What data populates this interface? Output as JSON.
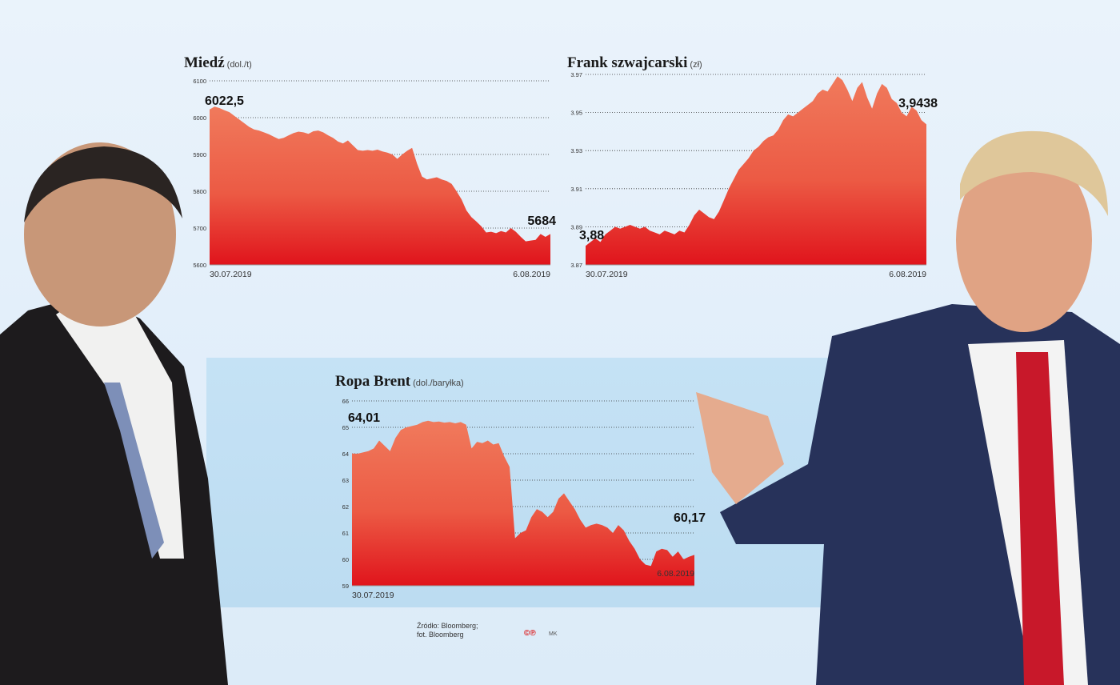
{
  "chart_data": [
    {
      "id": "copper",
      "type": "area",
      "title": "Miedź",
      "unit": "(dol./t)",
      "ylim": [
        5600,
        6100
      ],
      "yticks": [
        "6100",
        "6000",
        "5900",
        "5800",
        "5700",
        "5600"
      ],
      "ytick_values": [
        6100,
        6000,
        5900,
        5800,
        5700,
        5600
      ],
      "x_start_label": "30.07.2019",
      "x_end_label": "6.08.2019",
      "start_label": "6022,5",
      "end_label": "5684",
      "values": [
        6022.5,
        6030,
        6026,
        6020,
        6015,
        6005,
        5995,
        5985,
        5975,
        5968,
        5965,
        5960,
        5955,
        5948,
        5942,
        5945,
        5952,
        5958,
        5962,
        5960,
        5956,
        5963,
        5965,
        5960,
        5952,
        5945,
        5935,
        5930,
        5938,
        5925,
        5912,
        5910,
        5912,
        5910,
        5913,
        5908,
        5905,
        5900,
        5888,
        5900,
        5910,
        5918,
        5875,
        5840,
        5832,
        5835,
        5838,
        5832,
        5828,
        5820,
        5800,
        5778,
        5748,
        5730,
        5718,
        5705,
        5688,
        5690,
        5686,
        5692,
        5688,
        5700,
        5690,
        5676,
        5664,
        5666,
        5668,
        5684,
        5676,
        5684
      ]
    },
    {
      "id": "chf",
      "type": "area",
      "title": "Frank szwajcarski",
      "unit": "(zł)",
      "ylim": [
        3.87,
        3.97
      ],
      "yticks": [
        "3.97",
        "3.95",
        "3.93",
        "3.91",
        "3.89",
        "3.87"
      ],
      "ytick_values": [
        3.97,
        3.95,
        3.93,
        3.91,
        3.89,
        3.87
      ],
      "x_start_label": "30.07.2019",
      "x_end_label": "6.08.2019",
      "start_label": "3,88",
      "end_label": "3,9438",
      "values": [
        3.88,
        3.882,
        3.884,
        3.882,
        3.886,
        3.888,
        3.89,
        3.889,
        3.89,
        3.891,
        3.89,
        3.889,
        3.89,
        3.888,
        3.887,
        3.886,
        3.888,
        3.887,
        3.886,
        3.888,
        3.887,
        3.891,
        3.896,
        3.899,
        3.897,
        3.895,
        3.894,
        3.898,
        3.904,
        3.91,
        3.915,
        3.92,
        3.923,
        3.926,
        3.93,
        3.932,
        3.935,
        3.937,
        3.938,
        3.941,
        3.946,
        3.949,
        3.948,
        3.95,
        3.952,
        3.954,
        3.956,
        3.96,
        3.962,
        3.961,
        3.965,
        3.969,
        3.967,
        3.962,
        3.956,
        3.963,
        3.966,
        3.958,
        3.952,
        3.96,
        3.965,
        3.963,
        3.957,
        3.955,
        3.95,
        3.948,
        3.953,
        3.951,
        3.946,
        3.9438
      ]
    },
    {
      "id": "brent",
      "type": "area",
      "title": "Ropa Brent",
      "unit": "(dol./baryłka)",
      "ylim": [
        59,
        66
      ],
      "yticks": [
        "66",
        "65",
        "64",
        "63",
        "62",
        "61",
        "60",
        "59"
      ],
      "ytick_values": [
        66,
        65,
        64,
        63,
        62,
        61,
        60,
        59
      ],
      "x_start_label": "30.07.2019",
      "x_end_label": "6.08.2019",
      "start_label": "64,01",
      "end_label": "60,17",
      "values": [
        64.01,
        64.0,
        64.05,
        64.1,
        64.2,
        64.5,
        64.3,
        64.1,
        64.6,
        64.9,
        65.0,
        65.05,
        65.1,
        65.2,
        65.25,
        65.2,
        65.22,
        65.18,
        65.2,
        65.15,
        65.2,
        65.1,
        64.2,
        64.45,
        64.4,
        64.5,
        64.35,
        64.4,
        63.9,
        63.5,
        60.8,
        61.0,
        61.1,
        61.6,
        61.9,
        61.8,
        61.6,
        61.8,
        62.3,
        62.5,
        62.2,
        61.9,
        61.5,
        61.2,
        61.3,
        61.35,
        61.3,
        61.2,
        61.0,
        61.3,
        61.1,
        60.7,
        60.4,
        60.0,
        59.8,
        59.75,
        60.3,
        60.4,
        60.35,
        60.1,
        60.3,
        60.0,
        60.1,
        60.17
      ]
    }
  ],
  "footer": {
    "source_line1": "Źródło: Bloomberg;",
    "source_line2": "fot. Bloomberg",
    "logo": "©℗",
    "initials": "MK"
  },
  "colors": {
    "area_top": "#f07a5c",
    "area_bottom": "#e0141c",
    "grid": "#333333"
  }
}
